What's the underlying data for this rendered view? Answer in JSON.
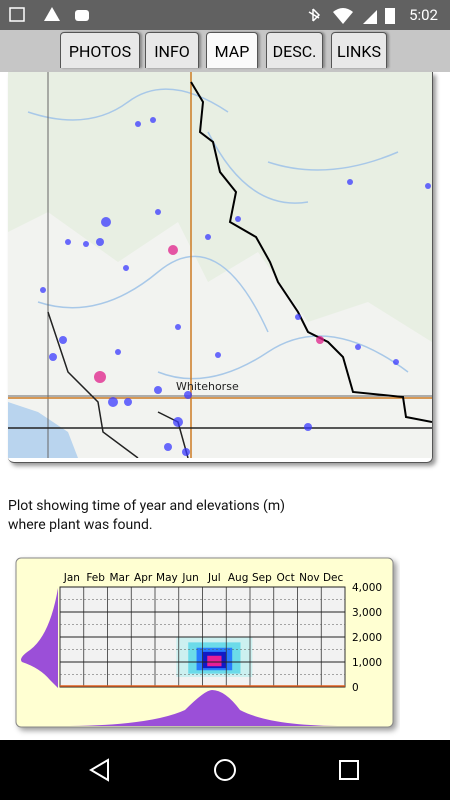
{
  "status_bar": {
    "time": "5:02"
  },
  "tabs": [
    {
      "label": "PHOTOS",
      "selected": false
    },
    {
      "label": "INFO",
      "selected": false
    },
    {
      "label": "MAP",
      "selected": true
    },
    {
      "label": "DESC.",
      "selected": false
    },
    {
      "label": "LINKS",
      "selected": false
    }
  ],
  "map": {
    "place_label": "Whitehorse"
  },
  "caption": "Plot showing time of year and elevations (m) where plant was found.",
  "plot": {
    "months": [
      "Jan",
      "Feb",
      "Mar",
      "Apr",
      "May",
      "Jun",
      "Jul",
      "Aug",
      "Sep",
      "Oct",
      "Nov",
      "Dec"
    ],
    "ylim": [
      0,
      4000
    ],
    "yticks": [
      {
        "value": 4000,
        "label": "4,000"
      },
      {
        "value": 3000,
        "label": "3,000"
      },
      {
        "value": 2000,
        "label": "2,000"
      },
      {
        "value": 1000,
        "label": "1,000"
      },
      0
    ]
  }
}
